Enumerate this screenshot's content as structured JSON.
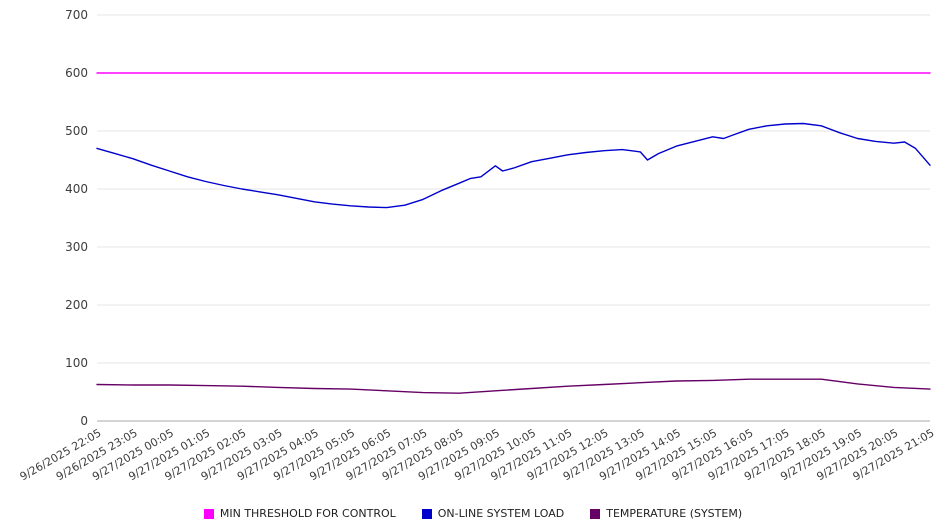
{
  "chart_data": {
    "type": "line",
    "title": "",
    "xlabel": "",
    "ylabel": "",
    "ylim": [
      0,
      700
    ],
    "ytick_step": 100,
    "xlim": [
      0,
      23
    ],
    "grid": "horizontal",
    "legend_position": "bottom-center",
    "grid_color": "#e4e4e4",
    "axis_line_color": "#aaaaaa",
    "axis_text_color": "#3d3d3d",
    "categories": [
      "9/26/2025 22:05",
      "9/26/2025 23:05",
      "9/27/2025 00:05",
      "9/27/2025 01:05",
      "9/27/2025 02:05",
      "9/27/2025 03:05",
      "9/27/2025 04:05",
      "9/27/2025 05:05",
      "9/27/2025 06:05",
      "9/27/2025 07:05",
      "9/27/2025 08:05",
      "9/27/2025 09:05",
      "9/27/2025 10:05",
      "9/27/2025 11:05",
      "9/27/2025 12:05",
      "9/27/2025 13:05",
      "9/27/2025 14:05",
      "9/27/2025 15:05",
      "9/27/2025 16:05",
      "9/27/2025 17:05",
      "9/27/2025 18:05",
      "9/27/2025 19:05",
      "9/27/2025 20:05",
      "9/27/2025 21:05"
    ],
    "series": [
      {
        "name": "MIN THRESHOLD FOR CONTROL",
        "color": "#ff00ff",
        "x": [
          0,
          23
        ],
        "values": [
          600,
          600
        ]
      },
      {
        "name": "ON-LINE SYSTEM LOAD",
        "color": "#0000cc",
        "x": [
          0,
          0.5,
          1,
          1.5,
          2,
          2.5,
          3,
          3.5,
          4,
          4.5,
          5,
          5.5,
          6,
          6.5,
          7,
          7.5,
          8,
          8.5,
          9,
          9.5,
          10,
          10.3,
          10.6,
          11,
          11.2,
          11.5,
          12,
          12.5,
          13,
          13.5,
          14,
          14.5,
          15,
          15.2,
          15.5,
          16,
          16.5,
          17,
          17.3,
          17.6,
          18,
          18.5,
          19,
          19.5,
          20,
          20.5,
          21,
          21.5,
          22,
          22.3,
          22.6,
          23
        ],
        "values": [
          470,
          461,
          452,
          441,
          431,
          421,
          413,
          406,
          400,
          395,
          390,
          384,
          378,
          374,
          371,
          369,
          368,
          372,
          382,
          397,
          410,
          418,
          421,
          440,
          431,
          436,
          447,
          453,
          459,
          463,
          466,
          468,
          464,
          450,
          461,
          474,
          482,
          490,
          487,
          494,
          503,
          509,
          512,
          513,
          509,
          497,
          487,
          482,
          479,
          481,
          470,
          441
        ]
      },
      {
        "name": "TEMPERATURE (SYSTEM)",
        "color": "#660066",
        "x": [
          0,
          1,
          2,
          3,
          4,
          5,
          6,
          7,
          8,
          9,
          10,
          11,
          12,
          13,
          14,
          15,
          16,
          17,
          18,
          19,
          20,
          21,
          22,
          23
        ],
        "values": [
          63,
          62,
          62,
          61,
          60,
          58,
          56,
          55,
          52,
          49,
          48,
          52,
          56,
          60,
          63,
          66,
          69,
          70,
          72,
          72,
          72,
          64,
          58,
          55
        ]
      }
    ]
  }
}
